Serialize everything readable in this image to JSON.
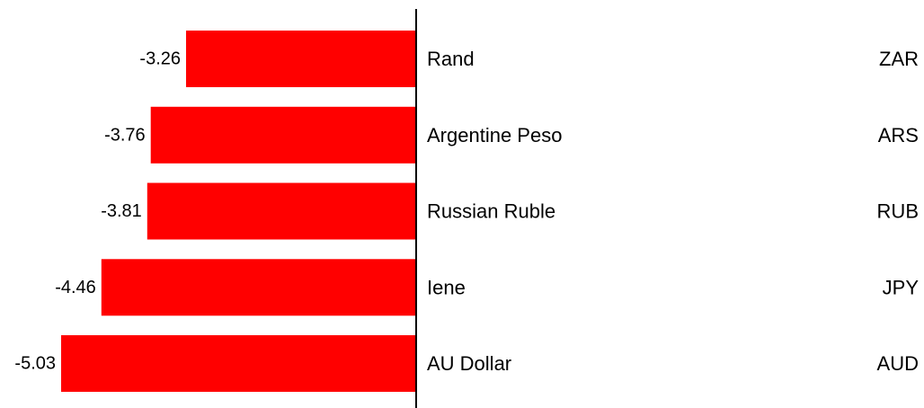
{
  "chart_data": {
    "type": "bar",
    "orientation": "horizontal",
    "categories": [
      "Rand",
      "Argentine Peso",
      "Russian Ruble",
      "Iene",
      "AU Dollar"
    ],
    "codes": [
      "ZAR",
      "ARS",
      "RUB",
      "JPY",
      "AUD"
    ],
    "values": [
      -3.26,
      -3.76,
      -3.81,
      -4.46,
      -5.03
    ],
    "value_labels": [
      "-3.26",
      "-3.76",
      "-3.81",
      "-4.46",
      "-5.03"
    ],
    "xlim": [
      -5.03,
      0
    ],
    "bar_color": "#ff0000",
    "axis_color": "#000000",
    "grid": false
  }
}
